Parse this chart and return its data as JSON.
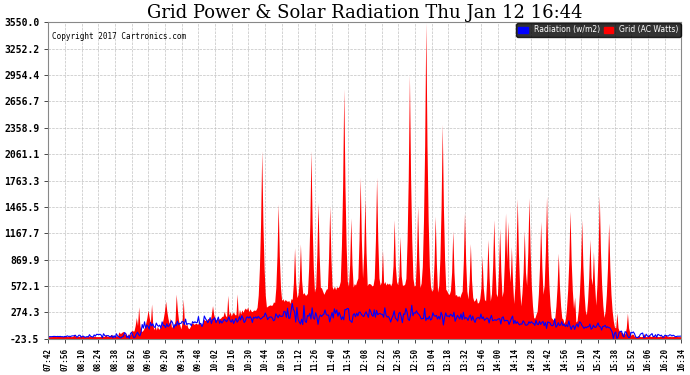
{
  "title": "Grid Power & Solar Radiation Thu Jan 12 16:44",
  "copyright": "Copyright 2017 Cartronics.com",
  "legend_labels": [
    "Radiation (w/m2)",
    "Grid (AC Watts)"
  ],
  "legend_facecolors": [
    "blue",
    "red"
  ],
  "yticks": [
    -23.5,
    274.3,
    572.1,
    869.9,
    1167.7,
    1465.5,
    1763.3,
    2061.1,
    2358.9,
    2656.7,
    2954.4,
    3252.2,
    3550.0
  ],
  "ylim": [
    -23.5,
    3550.0
  ],
  "background_color": "#ffffff",
  "plot_bg_color": "#ffffff",
  "grid_color": "#bbbbbb",
  "title_fontsize": 13,
  "title_fontfamily": "DejaVu Serif"
}
